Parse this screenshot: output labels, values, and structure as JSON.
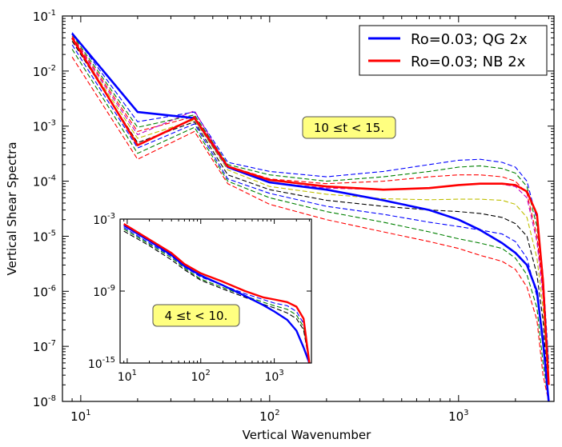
{
  "chart_data": [
    {
      "id": "main",
      "type": "line",
      "xscale": "log",
      "yscale": "log",
      "xlabel": "Vertical Wavenumber",
      "ylabel": "Vertical Shear Spectra",
      "xlim": [
        8,
        3200
      ],
      "ylim": [
        1e-08,
        0.1
      ],
      "x_ticks": [
        {
          "value": 10,
          "base": "10",
          "exp": "1"
        },
        {
          "value": 100,
          "base": "10",
          "exp": "2"
        },
        {
          "value": 1000,
          "base": "10",
          "exp": "3"
        }
      ],
      "y_ticks": [
        {
          "value": 1e-08,
          "base": "10",
          "exp": "-8"
        },
        {
          "value": 1e-07,
          "base": "10",
          "exp": "-7"
        },
        {
          "value": 1e-06,
          "base": "10",
          "exp": "-6"
        },
        {
          "value": 1e-05,
          "base": "10",
          "exp": "-5"
        },
        {
          "value": 0.0001,
          "base": "10",
          "exp": "-4"
        },
        {
          "value": 0.001,
          "base": "10",
          "exp": "-3"
        },
        {
          "value": 0.01,
          "base": "10",
          "exp": "-2"
        },
        {
          "value": 0.1,
          "base": "10",
          "exp": "-1"
        }
      ],
      "annotation": {
        "text": "10 ≤t < 15.",
        "x": 300,
        "y": 0.0009
      },
      "legend": {
        "position": "top-right",
        "entries": [
          {
            "label": "Ro=0.03; QG 2x",
            "color": "#0000ff"
          },
          {
            "label": "Ro=0.03; NB 2x",
            "color": "#ff0000"
          }
        ]
      },
      "x": [
        9,
        20,
        40,
        60,
        100,
        200,
        400,
        700,
        1000,
        1300,
        1700,
        2000,
        2300,
        2600,
        2800,
        3000
      ],
      "series": [
        {
          "name": "Ro=0.03; QG 2x",
          "color": "#0000ff",
          "style": "solid",
          "values": [
            0.048,
            0.0018,
            0.0014,
            0.00018,
            9.5e-05,
            7e-05,
            4.5e-05,
            3e-05,
            2e-05,
            1.3e-05,
            7.5e-06,
            5e-06,
            3e-06,
            1e-06,
            1.2e-07,
            1e-08
          ]
        },
        {
          "name": "Ro=0.03; NB 2x",
          "color": "#ff0000",
          "style": "solid",
          "values": [
            0.04,
            0.00045,
            0.0014,
            0.000185,
            0.000105,
            8e-05,
            7e-05,
            7.5e-05,
            8.5e-05,
            9e-05,
            9e-05,
            8.5e-05,
            6.5e-05,
            2.5e-05,
            1.5e-06,
            2e-08
          ]
        },
        {
          "name": "dashed blue upper",
          "color": "#0000ff",
          "style": "dashed",
          "values": [
            0.05,
            0.0012,
            0.0018,
            0.00022,
            0.00015,
            0.00012,
            0.00015,
            0.0002,
            0.00024,
            0.00025,
            0.00022,
            0.00018,
            0.0001,
            2e-05,
            2e-06,
            5e-08
          ]
        },
        {
          "name": "dashed green upper",
          "color": "#008000",
          "style": "dashed",
          "values": [
            0.046,
            0.00095,
            0.0016,
            0.0002,
            0.00013,
            0.0001,
            0.00012,
            0.00015,
            0.00018,
            0.00019,
            0.00017,
            0.00014,
            8e-05,
            1.5e-05,
            1.5e-06,
            4e-08
          ]
        },
        {
          "name": "dashed red upper",
          "color": "#ff0000",
          "style": "dashed",
          "values": [
            0.043,
            0.0008,
            0.0015,
            0.00019,
            0.00011,
            9e-05,
            0.0001,
            0.00012,
            0.00013,
            0.00013,
            0.00012,
            0.0001,
            6e-05,
            1e-05,
            1e-06,
            3e-08
          ]
        },
        {
          "name": "dashed magenta",
          "color": "#bf00bf",
          "style": "dashed",
          "values": [
            0.041,
            0.0007,
            0.0019,
            0.00018,
            9.5e-05,
            7.5e-05,
            7e-05,
            7.5e-05,
            8.5e-05,
            9e-05,
            8.8e-05,
            8e-05,
            5e-05,
            8e-06,
            8e-07,
            2e-08
          ]
        },
        {
          "name": "dashed olive",
          "color": "#bfbf00",
          "style": "dashed",
          "values": [
            0.038,
            0.0006,
            0.0013,
            0.00016,
            8e-05,
            5.8e-05,
            4.8e-05,
            4.6e-05,
            4.7e-05,
            4.7e-05,
            4.5e-05,
            3.8e-05,
            2.2e-05,
            4e-06,
            5e-07,
            2e-08
          ]
        },
        {
          "name": "dashed black",
          "color": "#000000",
          "style": "dashed",
          "values": [
            0.035,
            0.0005,
            0.0012,
            0.00013,
            7e-05,
            4.5e-05,
            3.5e-05,
            3e-05,
            2.8e-05,
            2.6e-05,
            2.2e-05,
            1.7e-05,
            1e-05,
            2e-06,
            3e-07,
            1e-08
          ]
        },
        {
          "name": "dashed blue lower",
          "color": "#0000ff",
          "style": "dashed",
          "values": [
            0.03,
            0.0004,
            0.0011,
            0.00011,
            6e-05,
            3.5e-05,
            2.5e-05,
            1.8e-05,
            1.5e-05,
            1.3e-05,
            1.1e-05,
            8e-06,
            4e-06,
            8e-07,
            1e-07,
            8e-09
          ]
        },
        {
          "name": "dashed green lower",
          "color": "#008000",
          "style": "dashed",
          "values": [
            0.025,
            0.00032,
            0.00095,
            0.0001,
            5e-05,
            2.8e-05,
            1.8e-05,
            1.2e-05,
            9e-06,
            7.5e-06,
            6e-06,
            4e-06,
            2e-06,
            5e-07,
            5e-08,
            6e-09
          ]
        },
        {
          "name": "dashed red lower",
          "color": "#ff0000",
          "style": "dashed",
          "values": [
            0.018,
            0.00025,
            0.0008,
            9e-05,
            3.8e-05,
            2e-05,
            1.2e-05,
            8e-06,
            6e-06,
            4.5e-06,
            3.5e-06,
            2.5e-06,
            1.2e-06,
            3e-07,
            3e-08,
            5e-09
          ]
        }
      ]
    },
    {
      "id": "inset",
      "type": "line",
      "xscale": "log",
      "yscale": "log",
      "xlim": [
        8,
        3200
      ],
      "ylim": [
        1e-15,
        0.001
      ],
      "x_ticks": [
        {
          "value": 10,
          "base": "10",
          "exp": "1"
        },
        {
          "value": 100,
          "base": "10",
          "exp": "2"
        },
        {
          "value": 1000,
          "base": "10",
          "exp": "3"
        }
      ],
      "y_ticks": [
        {
          "value": 1e-15,
          "base": "10",
          "exp": "-15"
        },
        {
          "value": 1e-09,
          "base": "10",
          "exp": "-9"
        },
        {
          "value": 0.001,
          "base": "10",
          "exp": "-3"
        }
      ],
      "annotation": {
        "text": "4 ≤t < 10.",
        "x": 80,
        "y": 1e-11
      },
      "x": [
        9,
        20,
        40,
        60,
        100,
        200,
        400,
        700,
        1000,
        1500,
        2000,
        2500,
        3000
      ],
      "series": [
        {
          "name": "Ro=0.03; QG 2x",
          "color": "#0000ff",
          "style": "solid",
          "values": [
            0.0003,
            1.5e-05,
            1e-06,
            1.2e-07,
            2e-08,
            3e-09,
            4e-10,
            7e-11,
            2e-11,
            4e-12,
            5e-13,
            2e-14,
            1e-15
          ]
        },
        {
          "name": "Ro=0.03; NB 2x",
          "color": "#ff0000",
          "style": "solid",
          "values": [
            0.0004,
            2e-05,
            1.5e-06,
            1.8e-07,
            3e-08,
            6e-09,
            1e-09,
            3e-10,
            2e-10,
            1.2e-10,
            5e-11,
            5e-12,
            1e-15
          ]
        },
        {
          "name": "dashed blue",
          "color": "#0000ff",
          "style": "dashed",
          "values": [
            0.0002,
            1e-05,
            8e-07,
            1e-07,
            1.5e-08,
            3e-09,
            6e-10,
            2e-10,
            1e-10,
            6e-11,
            2e-11,
            2e-12,
            1e-15
          ]
        },
        {
          "name": "dashed green",
          "color": "#008000",
          "style": "dashed",
          "values": [
            0.00015,
            8e-06,
            6e-07,
            8e-08,
            1e-08,
            2e-09,
            4e-10,
            1.2e-10,
            6e-11,
            3e-11,
            1e-11,
            1e-12,
            1e-15
          ]
        },
        {
          "name": "dashed black",
          "color": "#000000",
          "style": "dashed",
          "values": [
            0.0001,
            6e-06,
            4e-07,
            6e-08,
            8e-09,
            1.5e-09,
            3e-10,
            8e-11,
            4e-11,
            1.5e-11,
            5e-12,
            6e-13,
            1e-15
          ]
        }
      ]
    }
  ]
}
